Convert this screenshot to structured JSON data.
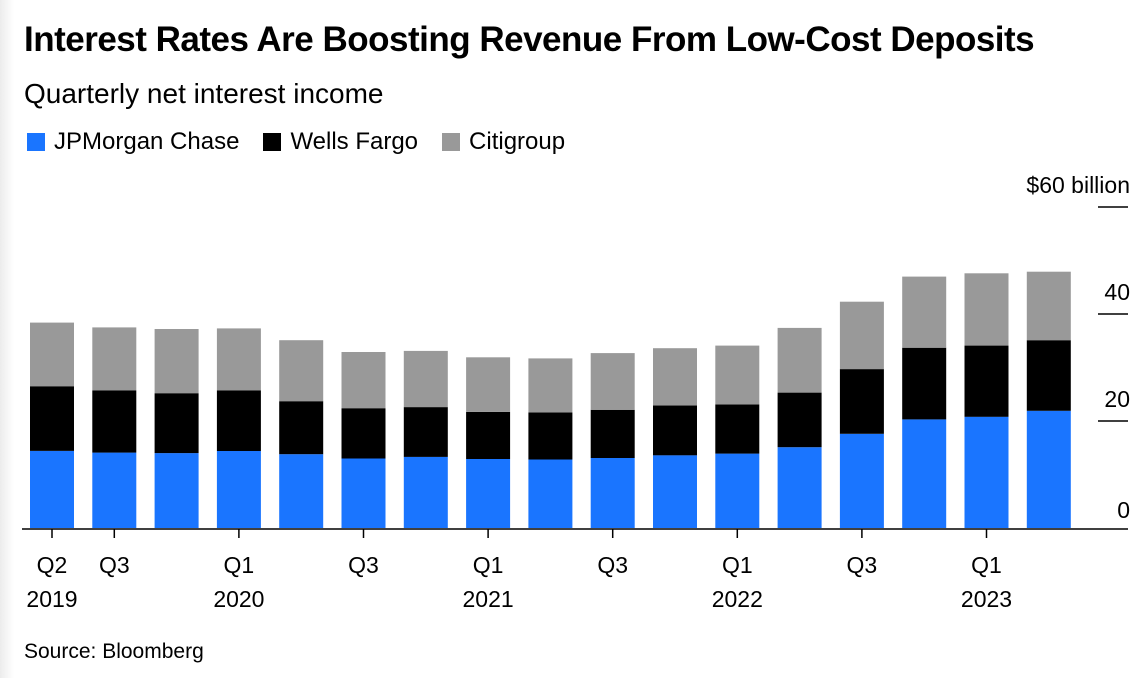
{
  "title": "Interest Rates Are Boosting Revenue From Low-Cost Deposits",
  "subtitle": "Quarterly net interest income",
  "source": "Source: Bloomberg",
  "colors": {
    "jpmorgan": "#1a75ff",
    "wells_fargo": "#000000",
    "citigroup": "#999999"
  },
  "chart_data": {
    "type": "bar",
    "stacked": true,
    "categories": [
      "Q2 2019",
      "Q3 2019",
      "Q4 2019",
      "Q1 2020",
      "Q2 2020",
      "Q3 2020",
      "Q4 2020",
      "Q1 2021",
      "Q2 2021",
      "Q3 2021",
      "Q4 2021",
      "Q1 2022",
      "Q2 2022",
      "Q3 2022",
      "Q4 2022",
      "Q1 2023",
      "Q2 2023"
    ],
    "series": [
      {
        "name": "JPMorgan Chase",
        "color": "#1a75ff",
        "values": [
          14.4,
          14.1,
          14.0,
          14.4,
          13.8,
          13.0,
          13.3,
          12.9,
          12.8,
          13.1,
          13.6,
          13.9,
          15.1,
          17.6,
          20.3,
          20.8,
          21.9
        ]
      },
      {
        "name": "Wells Fargo",
        "color": "#000000",
        "values": [
          12.1,
          11.6,
          11.2,
          11.3,
          9.9,
          9.4,
          9.3,
          8.8,
          8.8,
          9.0,
          9.3,
          9.2,
          10.2,
          12.1,
          13.4,
          13.3,
          13.2
        ]
      },
      {
        "name": "Citigroup",
        "color": "#999999",
        "values": [
          11.9,
          11.8,
          12.0,
          11.6,
          11.4,
          10.5,
          10.5,
          10.2,
          10.1,
          10.6,
          10.7,
          11.0,
          12.1,
          12.6,
          13.3,
          13.5,
          12.8
        ]
      }
    ],
    "yticks": [
      {
        "value": 0,
        "label": "0"
      },
      {
        "value": 20,
        "label": "20"
      },
      {
        "value": 40,
        "label": "40"
      },
      {
        "value": 60,
        "label": "$60 billion"
      }
    ],
    "xticks": [
      {
        "index": 0,
        "top": "Q2",
        "bottom": "2019"
      },
      {
        "index": 1,
        "top": "Q3",
        "bottom": ""
      },
      {
        "index": 3,
        "top": "Q1",
        "bottom": "2020"
      },
      {
        "index": 5,
        "top": "Q3",
        "bottom": ""
      },
      {
        "index": 7,
        "top": "Q1",
        "bottom": "2021"
      },
      {
        "index": 9,
        "top": "Q3",
        "bottom": ""
      },
      {
        "index": 11,
        "top": "Q1",
        "bottom": "2022"
      },
      {
        "index": 13,
        "top": "Q3",
        "bottom": ""
      },
      {
        "index": 15,
        "top": "Q1",
        "bottom": "2023"
      }
    ],
    "ylim": [
      0,
      60
    ],
    "legend_position": "top-left"
  }
}
